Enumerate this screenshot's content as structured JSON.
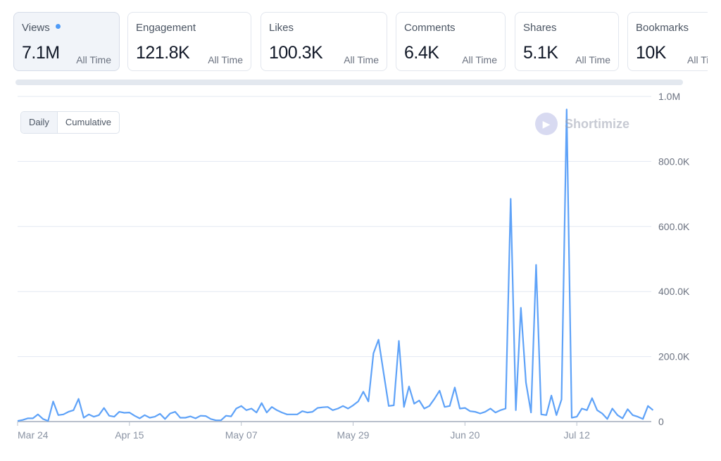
{
  "metrics": [
    {
      "label": "Views",
      "value": "7.1M",
      "period": "All Time",
      "active": true
    },
    {
      "label": "Engagement",
      "value": "121.8K",
      "period": "All Time"
    },
    {
      "label": "Likes",
      "value": "100.3K",
      "period": "All Time"
    },
    {
      "label": "Comments",
      "value": "6.4K",
      "period": "All Time"
    },
    {
      "label": "Shares",
      "value": "5.1K",
      "period": "All Time"
    },
    {
      "label": "Bookmarks",
      "value": "10K",
      "period": "All Time"
    }
  ],
  "toggle": {
    "daily": "Daily",
    "cumulative": "Cumulative"
  },
  "watermark": "Shortimize",
  "chart_data": {
    "type": "line",
    "series": [
      {
        "name": "Views (daily)",
        "color": "#5ea2f8",
        "start": "Mar 24",
        "values": [
          2,
          5,
          10,
          10,
          22,
          8,
          2,
          62,
          20,
          22,
          30,
          35,
          70,
          12,
          22,
          15,
          20,
          42,
          18,
          15,
          30,
          27,
          28,
          18,
          10,
          20,
          12,
          15,
          24,
          8,
          25,
          30,
          12,
          12,
          16,
          10,
          18,
          17,
          8,
          4,
          4,
          18,
          16,
          40,
          48,
          35,
          40,
          28,
          57,
          28,
          45,
          35,
          28,
          22,
          22,
          22,
          32,
          28,
          30,
          42,
          44,
          45,
          35,
          40,
          48,
          40,
          50,
          62,
          92,
          62,
          210,
          252,
          150,
          48,
          50,
          248,
          45,
          108,
          55,
          65,
          40,
          48,
          70,
          95,
          45,
          48,
          105,
          40,
          42,
          32,
          30,
          25,
          30,
          40,
          28,
          35,
          40,
          685,
          35,
          350,
          120,
          28,
          482,
          22,
          20,
          80,
          20,
          68,
          960,
          12,
          15,
          40,
          35,
          72,
          35,
          25,
          8,
          40,
          20,
          10,
          38,
          20,
          15,
          8,
          48,
          35
        ]
      }
    ],
    "value_unit": "thousands",
    "x_ticks": [
      "Mar 24",
      "Apr 15",
      "May 07",
      "May 29",
      "Jun 20",
      "Jul 12"
    ],
    "y_ticks": [
      "0",
      "200.0K",
      "400.0K",
      "600.0K",
      "800.0K",
      "1.0M"
    ],
    "ylim": [
      0,
      1000
    ],
    "grid": true
  }
}
